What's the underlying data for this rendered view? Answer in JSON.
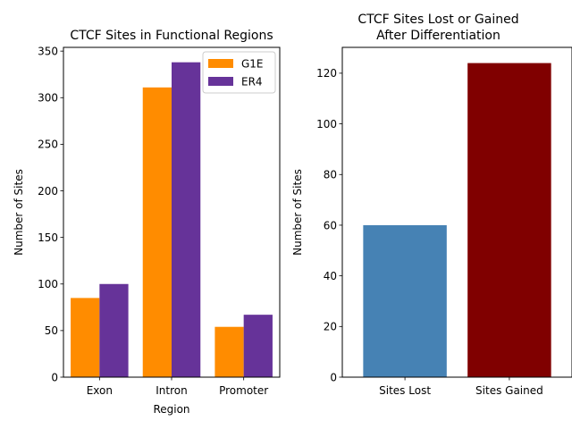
{
  "chart_data": [
    {
      "type": "bar",
      "title": "CTCF Sites in Functional Regions",
      "xlabel": "Region",
      "ylabel": "Number of Sites",
      "categories": [
        "Exon",
        "Intron",
        "Promoter"
      ],
      "series": [
        {
          "name": "G1E",
          "values": [
            85,
            311,
            54
          ],
          "color": "#ff8c00"
        },
        {
          "name": "ER4",
          "values": [
            100,
            338,
            67
          ],
          "color": "#663399"
        }
      ],
      "ylim": [
        0,
        354
      ],
      "yticks": [
        0,
        50,
        100,
        150,
        200,
        250,
        300,
        350
      ],
      "legend": "top-right",
      "grid": false
    },
    {
      "type": "bar",
      "title_lines": [
        "CTCF Sites Lost or Gained",
        "After Differentiation"
      ],
      "xlabel": "",
      "ylabel": "Number of Sites",
      "categories": [
        "Sites Lost",
        "Sites Gained"
      ],
      "values": [
        60,
        124
      ],
      "colors": [
        "#4682b4",
        "#800000"
      ],
      "ylim": [
        0,
        130.2
      ],
      "yticks": [
        0,
        20,
        40,
        60,
        80,
        100,
        120
      ],
      "grid": false
    }
  ]
}
